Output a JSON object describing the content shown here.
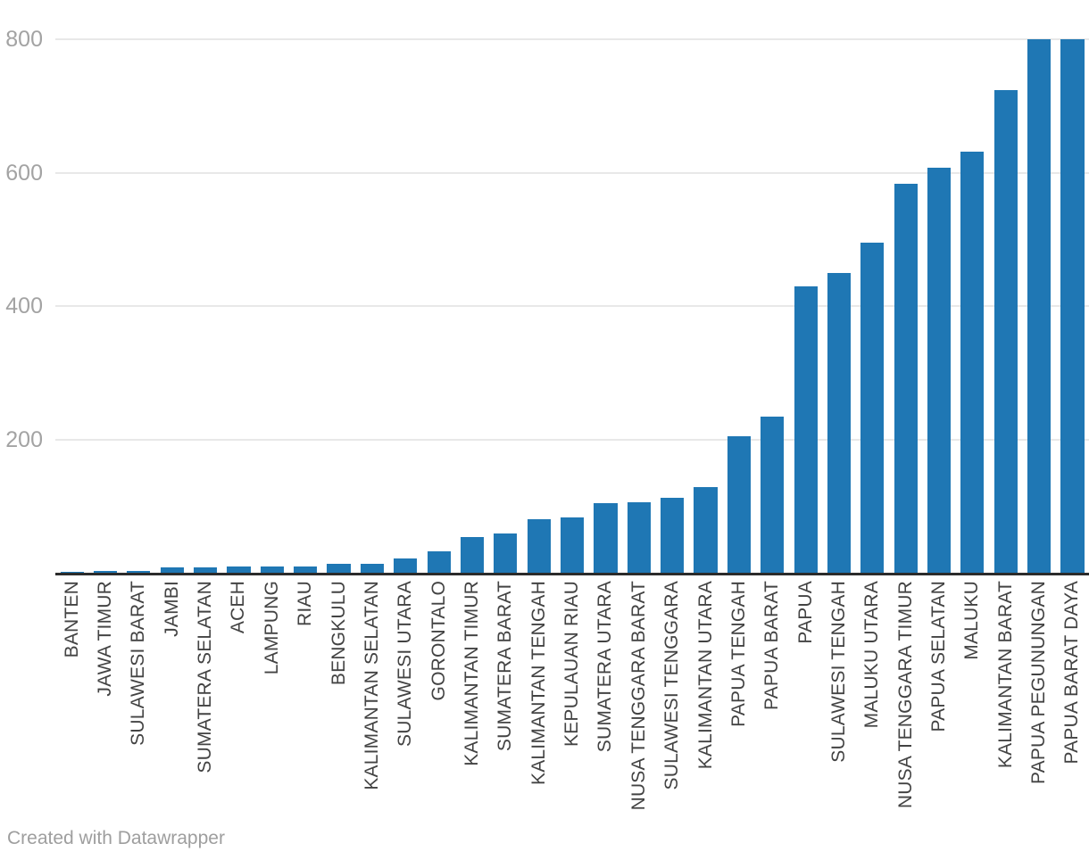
{
  "chart_data": {
    "type": "bar",
    "title": "",
    "xlabel": "",
    "ylabel": "",
    "categories": [
      "BANTEN",
      "JAWA TIMUR",
      "SULAWESI BARAT",
      "JAMBI",
      "SUMATERA SELATAN",
      "ACEH",
      "LAMPUNG",
      "RIAU",
      "BENGKULU",
      "KALIMANTAN SELATAN",
      "SULAWESI UTARA",
      "GORONTALO",
      "KALIMANTAN TIMUR",
      "SUMATERA BARAT",
      "KALIMANTAN TENGAH",
      "KEPULAUAN RIAU",
      "SUMATERA UTARA",
      "NUSA TENGGARA BARAT",
      "SULAWESI TENGGARA",
      "KALIMANTAN UTARA",
      "PAPUA TENGAH",
      "PAPUA BARAT",
      "PAPUA",
      "SULAWESI TENGAH",
      "MALUKU UTARA",
      "NUSA TENGGARA TIMUR",
      "PAPUA SELATAN",
      "MALUKU",
      "KALIMANTAN BARAT",
      "PAPUA PEGUNUNGAN",
      "PAPUA BARAT DAYA"
    ],
    "values": [
      1,
      3,
      3,
      8,
      8,
      10,
      10,
      10,
      13,
      13,
      21,
      32,
      53,
      59,
      80,
      83,
      104,
      106,
      112,
      128,
      205,
      234,
      430,
      450,
      495,
      583,
      608,
      632,
      724,
      800,
      800
    ],
    "ylim": [
      0,
      800
    ],
    "yticks": [
      200,
      400,
      600,
      800
    ],
    "grid": "horizontal",
    "legend": "none",
    "bar_orientation": "vertical",
    "sort_order": "ascending"
  },
  "colors": {
    "bar": "#1f77b4",
    "grid_line": "#e8e8e8",
    "axis_line": "#2b2b2b",
    "y_tick_label": "#a3a3a3",
    "x_tick_label": "#434343",
    "footer_text": "#9e9e9e",
    "background": "#ffffff"
  },
  "footer": {
    "credit": "Created with Datawrapper"
  }
}
